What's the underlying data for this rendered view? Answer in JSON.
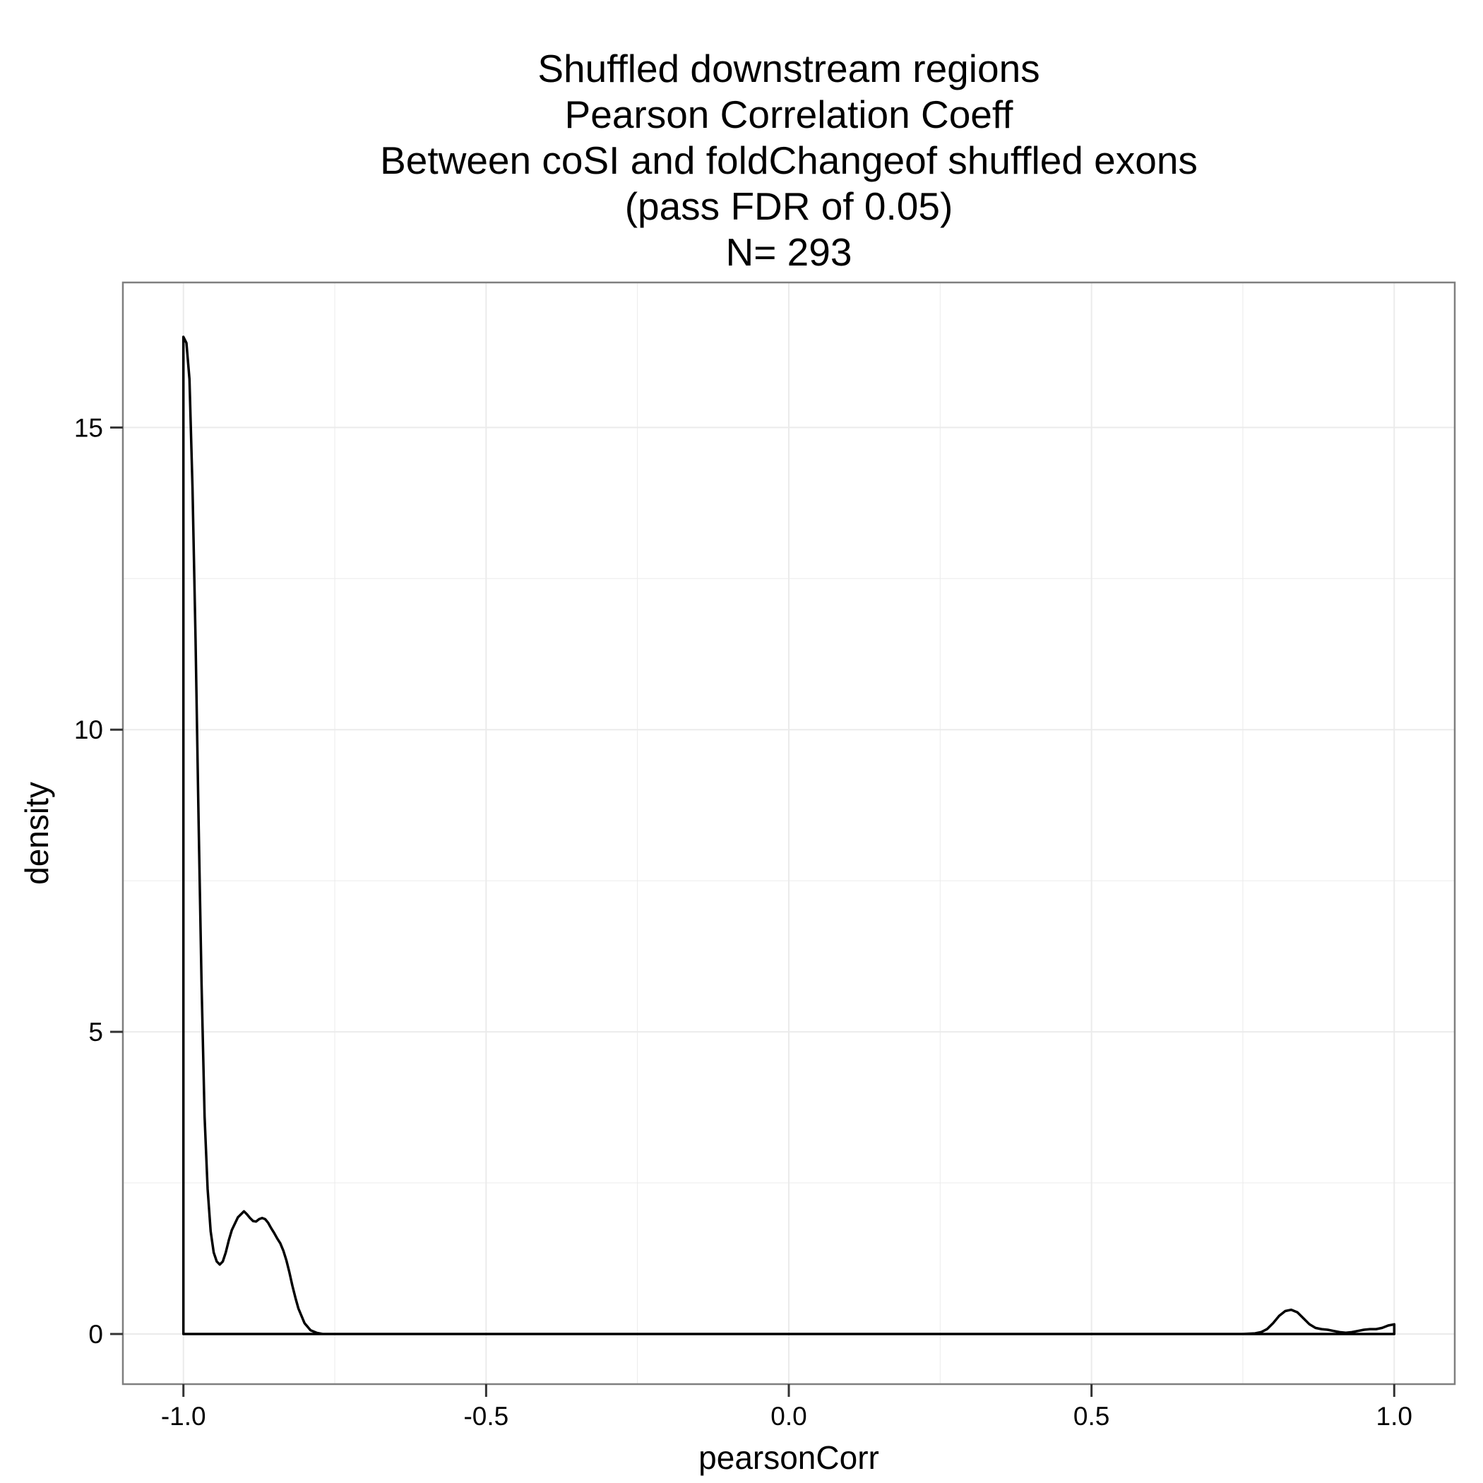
{
  "chart_data": {
    "type": "line",
    "title_lines": [
      "Shuffled downstream regions",
      "Pearson Correlation Coeff",
      "Between coSI and foldChangeof shuffled exons",
      "(pass FDR of 0.05)",
      "N= 293"
    ],
    "xlabel": "pearsonCorr",
    "ylabel": "density",
    "xlim": [
      -1.1,
      1.1
    ],
    "ylim": [
      -0.83,
      17.4
    ],
    "x_ticks": [
      -1.0,
      -0.5,
      0.0,
      0.5,
      1.0
    ],
    "x_tick_labels": [
      "-1.0",
      "-0.5",
      "0.0",
      "0.5",
      "1.0"
    ],
    "y_ticks": [
      0,
      5,
      10,
      15
    ],
    "y_tick_labels": [
      "0",
      "5",
      "10",
      "15"
    ],
    "grid": true,
    "legend": "none",
    "colors": {
      "panel_border": "#7f7f7f",
      "grid": "#ebebeb",
      "line": "#000000"
    },
    "series": [
      {
        "x": [
          -1.0,
          -0.995,
          -0.99,
          -0.985,
          -0.98,
          -0.975,
          -0.97,
          -0.965,
          -0.96,
          -0.955,
          -0.95,
          -0.945,
          -0.94,
          -0.935,
          -0.93,
          -0.925,
          -0.92,
          -0.91,
          -0.9,
          -0.895,
          -0.89,
          -0.885,
          -0.88,
          -0.875,
          -0.87,
          -0.865,
          -0.86,
          -0.855,
          -0.85,
          -0.845,
          -0.84,
          -0.835,
          -0.83,
          -0.825,
          -0.82,
          -0.815,
          -0.81,
          -0.8,
          -0.79,
          -0.78,
          -0.77,
          -0.75,
          -0.7,
          -0.5,
          0.0,
          0.5,
          0.7,
          0.75,
          0.77,
          0.78,
          0.79,
          0.8,
          0.81,
          0.82,
          0.83,
          0.84,
          0.85,
          0.86,
          0.87,
          0.88,
          0.89,
          0.9,
          0.91,
          0.92,
          0.93,
          0.94,
          0.95,
          0.96,
          0.97,
          0.98,
          0.99,
          1.0
        ],
        "y": [
          16.5,
          16.4,
          15.8,
          14.0,
          11.5,
          8.5,
          5.8,
          3.6,
          2.4,
          1.7,
          1.35,
          1.2,
          1.15,
          1.2,
          1.35,
          1.55,
          1.72,
          1.93,
          2.03,
          1.98,
          1.92,
          1.87,
          1.86,
          1.9,
          1.92,
          1.9,
          1.84,
          1.75,
          1.67,
          1.58,
          1.5,
          1.38,
          1.22,
          1.02,
          0.8,
          0.6,
          0.42,
          0.18,
          0.06,
          0.02,
          0.0,
          0.0,
          0.0,
          0.0,
          0.0,
          0.0,
          0.0,
          0.0,
          0.01,
          0.03,
          0.08,
          0.18,
          0.3,
          0.38,
          0.4,
          0.36,
          0.26,
          0.16,
          0.1,
          0.08,
          0.07,
          0.05,
          0.03,
          0.02,
          0.03,
          0.05,
          0.07,
          0.08,
          0.08,
          0.1,
          0.14,
          0.16
        ]
      }
    ]
  }
}
